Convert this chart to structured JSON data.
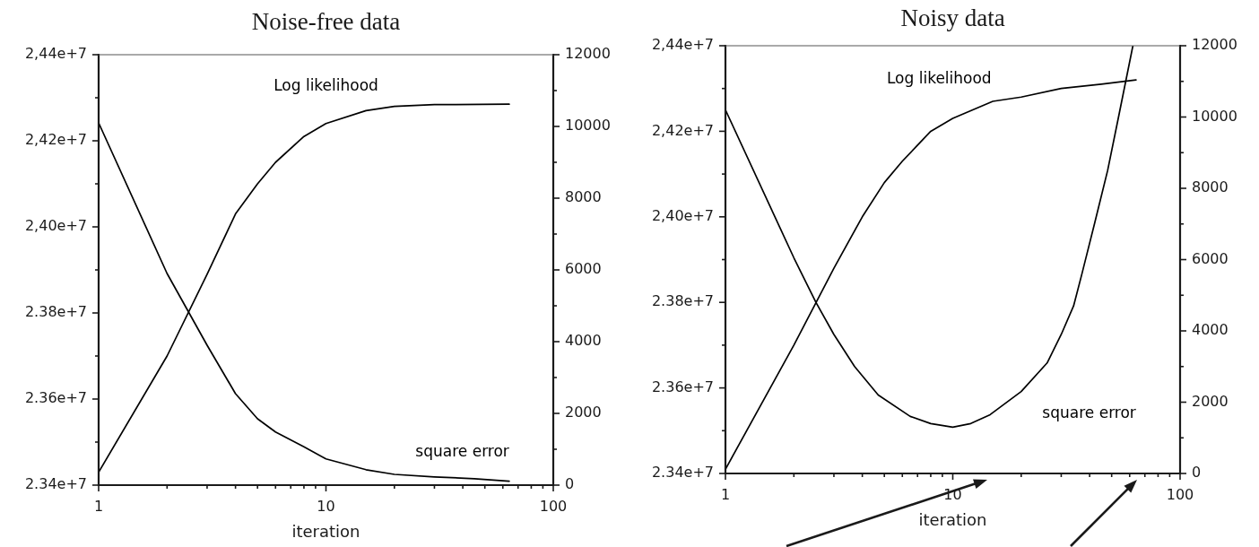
{
  "chart_data": [
    {
      "type": "line",
      "title": "Noise-free data",
      "xlabel": "iteration",
      "log": "x",
      "grid": false,
      "legend": false,
      "marker": "none",
      "xlim": [
        1,
        100
      ],
      "xticks": [
        1,
        {
          "value": 2,
          "label": null
        },
        {
          "value": 3,
          "label": null
        },
        {
          "value": 4,
          "label": null
        },
        {
          "value": 5,
          "label": null
        },
        {
          "value": 6,
          "label": null
        },
        {
          "value": 7,
          "label": null
        },
        {
          "value": 8,
          "label": null
        },
        {
          "value": 9,
          "label": null
        },
        10,
        {
          "value": 20,
          "label": null
        },
        {
          "value": 30,
          "label": null
        },
        {
          "value": 40,
          "label": null
        },
        {
          "value": 50,
          "label": null
        },
        {
          "value": 60,
          "label": null
        },
        {
          "value": 70,
          "label": null
        },
        {
          "value": 80,
          "label": null
        },
        {
          "value": 90,
          "label": null
        },
        100
      ],
      "ylim": [
        23400000,
        24400000
      ],
      "yticks": [
        {
          "value": 23400000,
          "label": "2.34e+7"
        },
        {
          "value": 23500000,
          "label": null
        },
        {
          "value": 23600000,
          "label": "2.36e+7"
        },
        {
          "value": 23700000,
          "label": null
        },
        {
          "value": 23800000,
          "label": "2.38e+7"
        },
        {
          "value": 23900000,
          "label": null
        },
        {
          "value": 24000000,
          "label": "2,40e+7"
        },
        {
          "value": 24100000,
          "label": null
        },
        {
          "value": 24200000,
          "label": "2,42e+7"
        },
        {
          "value": 24300000,
          "label": null
        },
        {
          "value": 24400000,
          "label": "2,44e+7"
        }
      ],
      "y2lim": [
        0,
        12000
      ],
      "y2ticks": [
        0,
        {
          "value": 1000,
          "label": null
        },
        2000,
        {
          "value": 3000,
          "label": null
        },
        4000,
        {
          "value": 5000,
          "label": null
        },
        6000,
        {
          "value": 7000,
          "label": null
        },
        8000,
        {
          "value": 9000,
          "label": null
        },
        10000,
        {
          "value": 11000,
          "label": null
        },
        12000
      ],
      "series": [
        {
          "name": "Log likelihood",
          "color": "#000000",
          "x": [
            1,
            2,
            3,
            4,
            5,
            6,
            8,
            10,
            15,
            20,
            30,
            64
          ],
          "values": [
            23430000,
            23700000,
            23890000,
            24030000,
            24100000,
            24150000,
            24210000,
            24240000,
            24270000,
            24280000,
            24284000,
            24285000
          ]
        },
        {
          "name": "square error",
          "color": "#000000",
          "axis": "y2",
          "x": [
            1,
            2,
            3,
            4,
            5,
            6,
            8,
            10,
            15,
            20,
            30,
            45,
            64
          ],
          "values": [
            10100,
            5900,
            3900,
            2550,
            1850,
            1480,
            1070,
            730,
            430,
            300,
            230,
            180,
            110
          ]
        }
      ]
    },
    {
      "type": "line",
      "title": "Noisy data",
      "xlabel": "iteration",
      "log": "x",
      "grid": false,
      "legend": false,
      "marker": "none",
      "xlim": [
        1,
        100
      ],
      "xticks": [
        1,
        {
          "value": 2,
          "label": null
        },
        {
          "value": 3,
          "label": null
        },
        {
          "value": 4,
          "label": null
        },
        {
          "value": 5,
          "label": null
        },
        {
          "value": 6,
          "label": null
        },
        {
          "value": 7,
          "label": null
        },
        {
          "value": 8,
          "label": null
        },
        {
          "value": 9,
          "label": null
        },
        10,
        {
          "value": 20,
          "label": null
        },
        {
          "value": 30,
          "label": null
        },
        {
          "value": 40,
          "label": null
        },
        {
          "value": 50,
          "label": null
        },
        {
          "value": 60,
          "label": null
        },
        {
          "value": 70,
          "label": null
        },
        {
          "value": 80,
          "label": null
        },
        {
          "value": 90,
          "label": null
        },
        100
      ],
      "ylim": [
        23400000,
        24400000
      ],
      "yticks": [
        {
          "value": 23400000,
          "label": "2.34e+7"
        },
        {
          "value": 23500000,
          "label": null
        },
        {
          "value": 23600000,
          "label": "2.36e+7"
        },
        {
          "value": 23700000,
          "label": null
        },
        {
          "value": 23800000,
          "label": "2.38e+7"
        },
        {
          "value": 23900000,
          "label": null
        },
        {
          "value": 24000000,
          "label": "2,40e+7"
        },
        {
          "value": 24100000,
          "label": null
        },
        {
          "value": 24200000,
          "label": "2,42e+7"
        },
        {
          "value": 24300000,
          "label": null
        },
        {
          "value": 24400000,
          "label": "2,44e+7"
        }
      ],
      "y2lim": [
        0,
        12000
      ],
      "y2ticks": [
        0,
        {
          "value": 1000,
          "label": null
        },
        2000,
        {
          "value": 3000,
          "label": null
        },
        4000,
        {
          "value": 5000,
          "label": null
        },
        6000,
        {
          "value": 7000,
          "label": null
        },
        8000,
        {
          "value": 9000,
          "label": null
        },
        10000,
        {
          "value": 11000,
          "label": null
        },
        12000
      ],
      "series": [
        {
          "name": "Log likelihood",
          "color": "#000000",
          "x": [
            1,
            2,
            3,
            4,
            5,
            6,
            8,
            10,
            15,
            20,
            30,
            45,
            64
          ],
          "values": [
            23410000,
            23700000,
            23880000,
            24000000,
            24080000,
            24130000,
            24200000,
            24230000,
            24270000,
            24280000,
            24300000,
            24310000,
            24320000
          ]
        },
        {
          "name": "square error",
          "color": "#000000",
          "axis": "y2",
          "x": [
            1,
            2,
            2.5,
            3,
            3.7,
            4.7,
            6.5,
            8,
            10,
            12,
            14.6,
            20,
            26,
            30,
            34,
            37,
            42,
            48,
            54,
            62
          ],
          "values": [
            10200,
            6050,
            4800,
            3900,
            3000,
            2200,
            1600,
            1400,
            1300,
            1400,
            1650,
            2300,
            3100,
            3900,
            4700,
            5600,
            7000,
            8500,
            10100,
            12000
          ]
        }
      ]
    }
  ]
}
